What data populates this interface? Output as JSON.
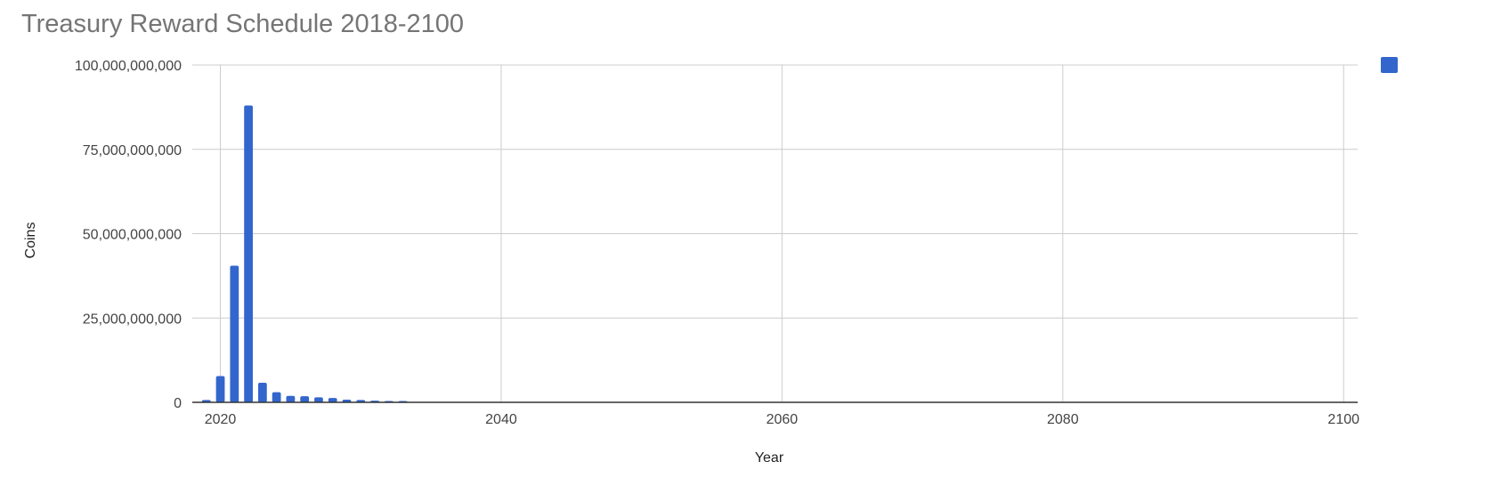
{
  "chart_data": {
    "type": "bar",
    "title": "Treasury Reward Schedule 2018-2100",
    "xlabel": "Year",
    "ylabel": "Coins",
    "xlim": [
      2018,
      2101
    ],
    "ylim": [
      0,
      100000000000
    ],
    "x_ticks": [
      {
        "value": 2020,
        "label": "2020"
      },
      {
        "value": 2040,
        "label": "2040"
      },
      {
        "value": 2060,
        "label": "2060"
      },
      {
        "value": 2080,
        "label": "2080"
      },
      {
        "value": 2100,
        "label": "2100"
      }
    ],
    "y_ticks": [
      {
        "value": 0,
        "label": "0"
      },
      {
        "value": 25000000000,
        "label": "25,000,000,000"
      },
      {
        "value": 50000000000,
        "label": "50,000,000,000"
      },
      {
        "value": 75000000000,
        "label": "75,000,000,000"
      },
      {
        "value": 100000000000,
        "label": "100,000,000,000"
      }
    ],
    "grid": true,
    "legend": {
      "position": "right",
      "entries": [
        {
          "name": ""
        }
      ]
    },
    "series": [
      {
        "name": "",
        "color": "#3366cc",
        "x": [
          2019,
          2020,
          2021,
          2022,
          2023,
          2024,
          2025,
          2026,
          2027,
          2028,
          2029,
          2030,
          2031,
          2032,
          2033
        ],
        "values": [
          700000000,
          7800000000,
          40500000000,
          88000000000,
          5800000000,
          3000000000,
          1900000000,
          1800000000,
          1500000000,
          1300000000,
          800000000,
          700000000,
          500000000,
          400000000,
          300000000
        ]
      }
    ]
  }
}
